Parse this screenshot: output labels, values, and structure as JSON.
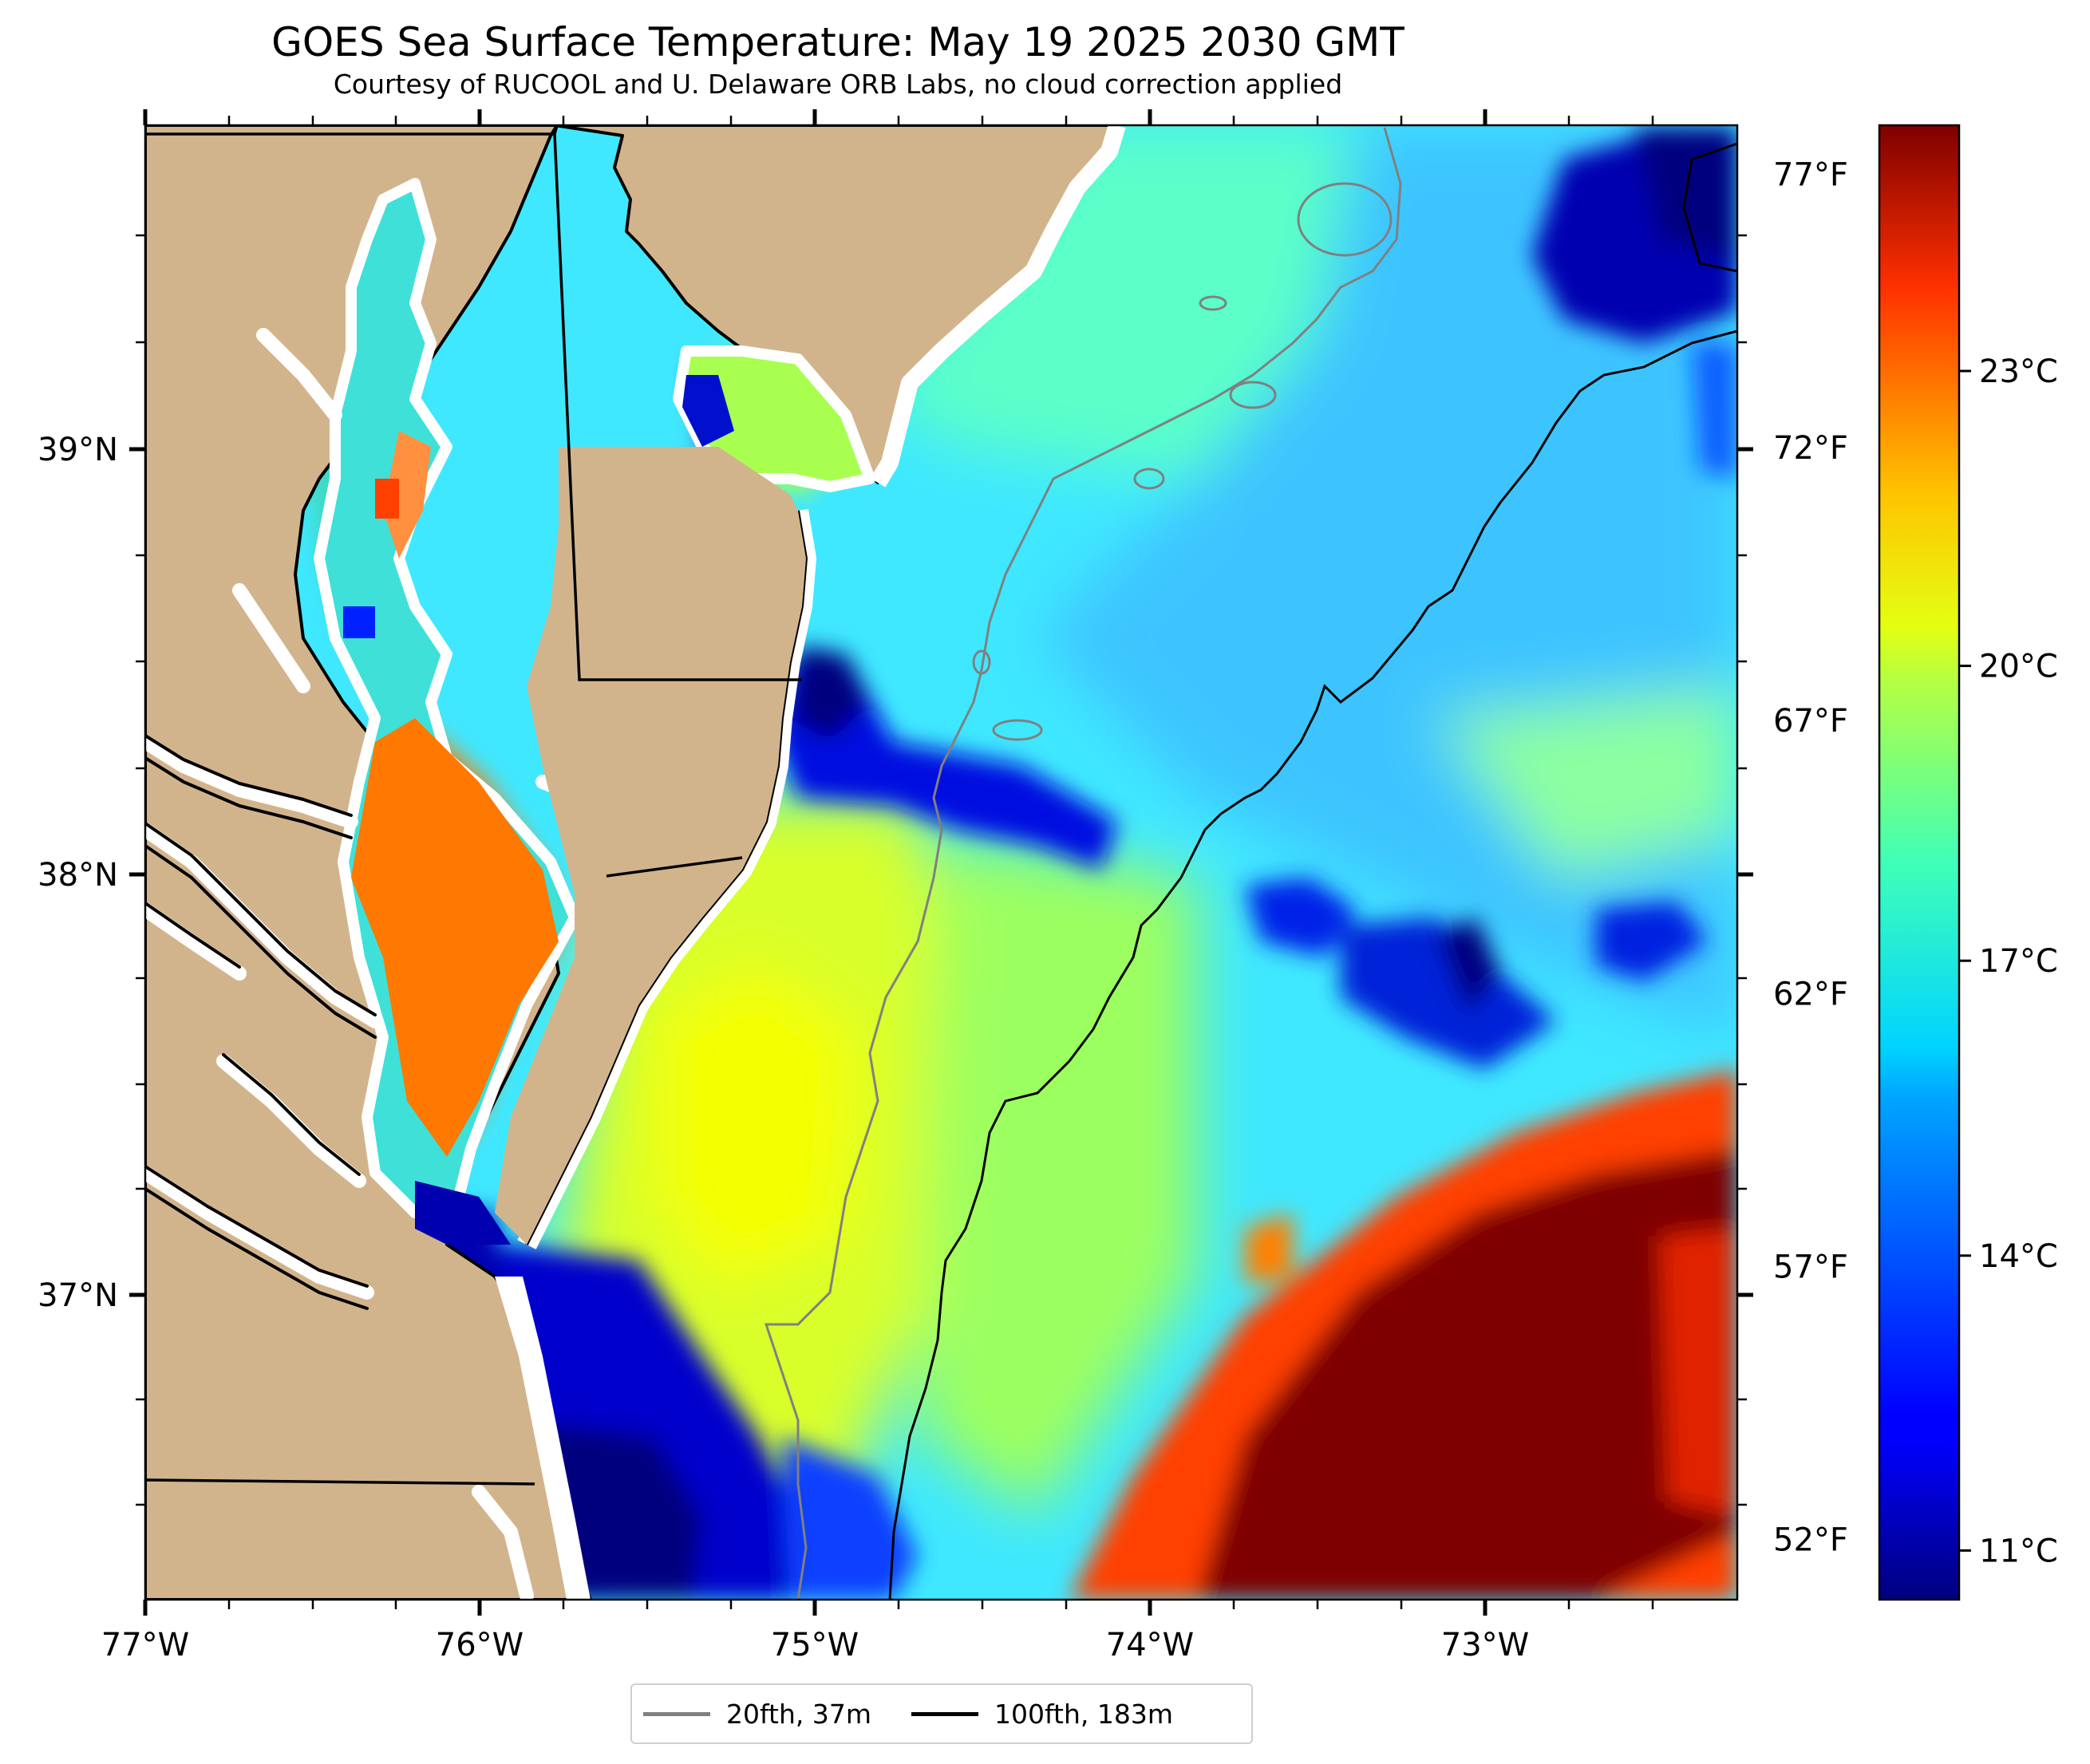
{
  "title": "GOES Sea Surface Temperature: May 19 2025 2030 GMT",
  "subtitle": "Courtesy of RUCOOL and U. Delaware ORB Labs, no cloud correction applied",
  "map": {
    "lon_range": [
      -77.0,
      -72.25
    ],
    "lat_range": [
      36.25,
      39.75
    ],
    "lon_ticks": [
      "77°W",
      "76°W",
      "75°W",
      "74°W",
      "73°W"
    ],
    "lat_ticks": [
      "39°N",
      "38°N",
      "37°N"
    ],
    "land_color": "#d2b48c",
    "features": [
      "Chesapeake Bay",
      "Delaware Bay",
      "Delmarva Peninsula",
      "state borders",
      "20 fathom isobath",
      "100 fathom isobath"
    ]
  },
  "colorbar": {
    "colormap": "jet",
    "range_c": [
      10.5,
      25.5
    ],
    "celsius_labels": [
      "23°C",
      "20°C",
      "17°C",
      "14°C",
      "11°C"
    ],
    "celsius_values": [
      23,
      20,
      17,
      14,
      11
    ],
    "fahrenheit_labels": [
      "77°F",
      "72°F",
      "67°F",
      "62°F",
      "57°F",
      "52°F"
    ],
    "fahrenheit_values": [
      77,
      72,
      67,
      62,
      57,
      52
    ]
  },
  "legend": {
    "items": [
      {
        "label": "20fth, 37m",
        "color": "#808080"
      },
      {
        "label": "100fth, 183m",
        "color": "#000000"
      }
    ]
  }
}
